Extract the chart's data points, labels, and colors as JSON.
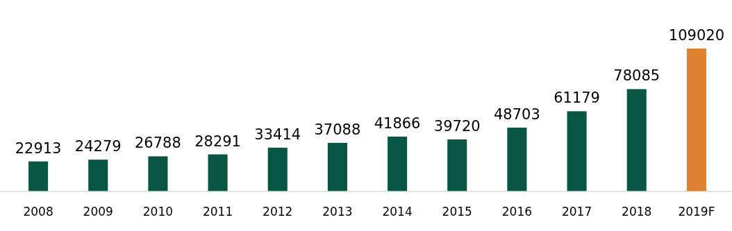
{
  "chart_data": {
    "type": "bar",
    "categories": [
      "2008",
      "2009",
      "2010",
      "2011",
      "2012",
      "2013",
      "2014",
      "2015",
      "2016",
      "2017",
      "2018",
      "2019F"
    ],
    "values": [
      22913,
      24279,
      26788,
      28291,
      33414,
      37088,
      41866,
      39720,
      48703,
      61179,
      78085,
      109020
    ],
    "colors": [
      "#075744",
      "#075744",
      "#075744",
      "#075744",
      "#075744",
      "#075744",
      "#075744",
      "#075744",
      "#075744",
      "#075744",
      "#075744",
      "#dd8130"
    ],
    "data_labels": true
  }
}
